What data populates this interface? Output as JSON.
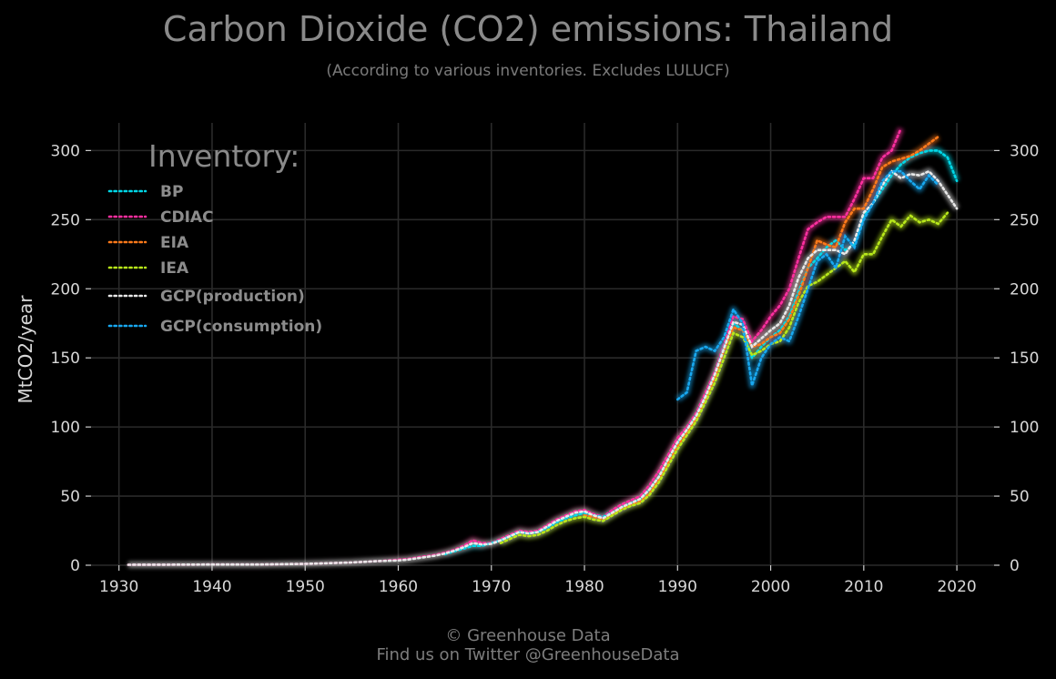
{
  "header": {
    "title": "Carbon Dioxide (CO2) emissions: Thailand",
    "subtitle": "(According to various inventories. Excludes LULUCF)"
  },
  "footer": {
    "line1": "© Greenhouse Data",
    "line2": "Find us on Twitter @GreenhouseData"
  },
  "chart_data": {
    "type": "line",
    "title": "Carbon Dioxide (CO2) emissions: Thailand",
    "subtitle": "(According to various inventories. Excludes LULUCF)",
    "xlabel": "",
    "ylabel": "MtCO2/year",
    "xlim": [
      1927,
      2024
    ],
    "ylim": [
      0,
      320
    ],
    "xticks": [
      1930,
      1940,
      1950,
      1960,
      1970,
      1980,
      1990,
      2000,
      2010,
      2020
    ],
    "yticks": [
      0,
      50,
      100,
      150,
      200,
      250,
      300
    ],
    "grid": true,
    "legend_title": "Inventory:",
    "legend_position": "top-left",
    "series": [
      {
        "name": "CDIAC",
        "color": "#ff2fa0",
        "x": [
          1931,
          1935,
          1940,
          1945,
          1950,
          1955,
          1958,
          1960,
          1961,
          1962,
          1963,
          1964,
          1965,
          1966,
          1967,
          1968,
          1969,
          1970,
          1971,
          1972,
          1973,
          1974,
          1975,
          1976,
          1977,
          1978,
          1979,
          1980,
          1981,
          1982,
          1983,
          1984,
          1985,
          1986,
          1987,
          1988,
          1989,
          1990,
          1991,
          1992,
          1993,
          1994,
          1995,
          1996,
          1997,
          1998,
          1999,
          2000,
          2001,
          2002,
          2003,
          2004,
          2005,
          2006,
          2007,
          2008,
          2009,
          2010,
          2011,
          2012,
          2013,
          2014
        ],
        "y": [
          0.3,
          0.4,
          0.5,
          0.5,
          1,
          2,
          3,
          4,
          4.5,
          5.5,
          6.5,
          7.5,
          9,
          11,
          14,
          18,
          16,
          16,
          19,
          22,
          25,
          24,
          25,
          29,
          33,
          36,
          39,
          40,
          37,
          35,
          40,
          44,
          47,
          50,
          58,
          68,
          80,
          92,
          100,
          110,
          125,
          140,
          160,
          180,
          178,
          162,
          170,
          180,
          188,
          200,
          222,
          243,
          248,
          252,
          252,
          252,
          265,
          280,
          280,
          295,
          300,
          316
        ]
      },
      {
        "name": "BP",
        "color": "#00d8e8",
        "x": [
          1965,
          1966,
          1967,
          1968,
          1969,
          1970,
          1971,
          1972,
          1973,
          1974,
          1975,
          1976,
          1977,
          1978,
          1979,
          1980,
          1981,
          1982,
          1983,
          1984,
          1985,
          1986,
          1987,
          1988,
          1989,
          1990,
          1991,
          1992,
          1993,
          1994,
          1995,
          1996,
          1997,
          1998,
          1999,
          2000,
          2001,
          2002,
          2003,
          2004,
          2005,
          2006,
          2007,
          2008,
          2009,
          2010,
          2011,
          2012,
          2013,
          2014,
          2015,
          2016,
          2017,
          2018,
          2019,
          2020
        ],
        "y": [
          8,
          10,
          12,
          14,
          14,
          16,
          18,
          21,
          24,
          23,
          24,
          27,
          31,
          34,
          36,
          38,
          36,
          35,
          38,
          42,
          45,
          48,
          55,
          64,
          76,
          88,
          98,
          108,
          122,
          138,
          158,
          175,
          170,
          150,
          158,
          165,
          170,
          180,
          198,
          215,
          222,
          230,
          235,
          228,
          232,
          252,
          262,
          272,
          282,
          290,
          295,
          298,
          300,
          300,
          295,
          278
        ]
      },
      {
        "name": "EIA",
        "color": "#ff7a1a",
        "x": [
          1980,
          1981,
          1982,
          1983,
          1984,
          1985,
          1986,
          1987,
          1988,
          1989,
          1990,
          1991,
          1992,
          1993,
          1994,
          1995,
          1996,
          1997,
          1998,
          1999,
          2000,
          2001,
          2002,
          2003,
          2004,
          2005,
          2006,
          2007,
          2008,
          2009,
          2010,
          2011,
          2012,
          2013,
          2014,
          2015,
          2016,
          2017,
          2018
        ],
        "y": [
          36,
          35,
          33,
          37,
          41,
          44,
          46,
          52,
          62,
          74,
          86,
          96,
          106,
          120,
          136,
          156,
          172,
          170,
          158,
          160,
          165,
          168,
          178,
          195,
          215,
          235,
          232,
          230,
          248,
          258,
          258,
          272,
          288,
          292,
          294,
          296,
          300,
          305,
          310
        ]
      },
      {
        "name": "IEA",
        "color": "#b8e81a",
        "x": [
          1971,
          1972,
          1973,
          1974,
          1975,
          1976,
          1977,
          1978,
          1979,
          1980,
          1981,
          1982,
          1983,
          1984,
          1985,
          1986,
          1987,
          1988,
          1989,
          1990,
          1991,
          1992,
          1993,
          1994,
          1995,
          1996,
          1997,
          1998,
          1999,
          2000,
          2001,
          2002,
          2003,
          2004,
          2005,
          2006,
          2007,
          2008,
          2009,
          2010,
          2011,
          2012,
          2013,
          2014,
          2015,
          2016,
          2017,
          2018,
          2019
        ],
        "y": [
          16,
          19,
          22,
          21,
          22,
          25,
          29,
          32,
          34,
          35,
          33,
          32,
          36,
          40,
          43,
          45,
          51,
          60,
          72,
          84,
          94,
          104,
          118,
          132,
          150,
          168,
          165,
          152,
          155,
          160,
          162,
          172,
          190,
          202,
          205,
          210,
          215,
          220,
          212,
          225,
          225,
          238,
          250,
          245,
          253,
          248,
          250,
          247,
          255
        ]
      },
      {
        "name": "GCP(production)",
        "color": "#e8e8e8",
        "x": [
          1931,
          1935,
          1940,
          1945,
          1950,
          1955,
          1958,
          1960,
          1961,
          1962,
          1963,
          1964,
          1965,
          1966,
          1967,
          1968,
          1969,
          1970,
          1971,
          1972,
          1973,
          1974,
          1975,
          1976,
          1977,
          1978,
          1979,
          1980,
          1981,
          1982,
          1983,
          1984,
          1985,
          1986,
          1987,
          1988,
          1989,
          1990,
          1991,
          1992,
          1993,
          1994,
          1995,
          1996,
          1997,
          1998,
          1999,
          2000,
          2001,
          2002,
          2003,
          2004,
          2005,
          2006,
          2007,
          2008,
          2009,
          2010,
          2011,
          2012,
          2013,
          2014,
          2015,
          2016,
          2017,
          2018,
          2019,
          2020
        ],
        "y": [
          0.3,
          0.4,
          0.5,
          0.5,
          1,
          2,
          3,
          3.5,
          4,
          5,
          6,
          7,
          8.5,
          10.5,
          13,
          16,
          15,
          15.5,
          18,
          21,
          24,
          23,
          24,
          28,
          32,
          35,
          38,
          39,
          36,
          34,
          38,
          42,
          45,
          48,
          55,
          64,
          77,
          89,
          98,
          108,
          122,
          138,
          157,
          176,
          174,
          158,
          164,
          170,
          175,
          188,
          208,
          222,
          228,
          228,
          228,
          225,
          235,
          255,
          262,
          275,
          285,
          280,
          283,
          282,
          285,
          278,
          268,
          258
        ]
      },
      {
        "name": "GCP(consumption)",
        "color": "#18a8f0",
        "x": [
          1990,
          1991,
          1992,
          1993,
          1994,
          1995,
          1996,
          1997,
          1998,
          1999,
          2000,
          2001,
          2002,
          2003,
          2004,
          2005,
          2006,
          2007,
          2008,
          2009,
          2010,
          2011,
          2012,
          2013,
          2014,
          2015,
          2016,
          2017,
          2018
        ],
        "y": [
          120,
          125,
          155,
          158,
          155,
          165,
          185,
          175,
          130,
          150,
          160,
          165,
          162,
          180,
          200,
          220,
          225,
          215,
          238,
          230,
          250,
          262,
          278,
          285,
          285,
          278,
          272,
          282,
          275
        ]
      }
    ]
  }
}
